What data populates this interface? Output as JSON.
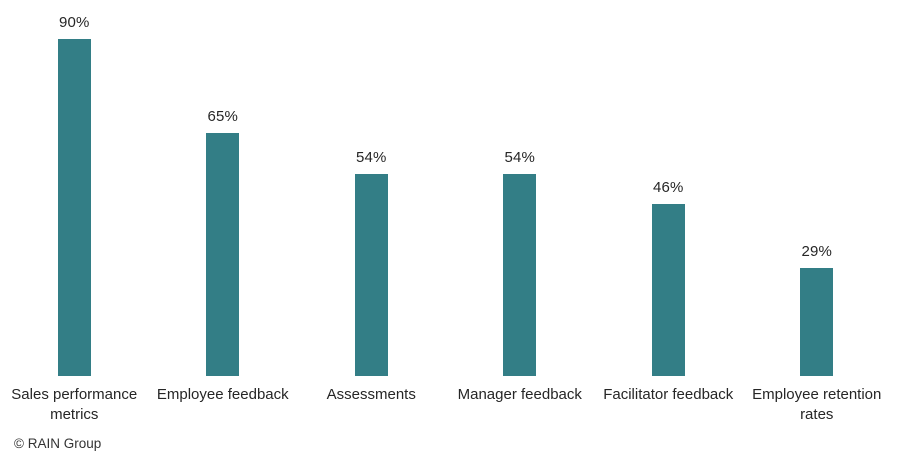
{
  "chart_data": {
    "type": "bar",
    "categories": [
      "Sales performance metrics",
      "Employee feedback",
      "Assessments",
      "Manager feedback",
      "Facilitator feedback",
      "Employee retention rates"
    ],
    "values": [
      90,
      65,
      54,
      54,
      46,
      29
    ],
    "value_labels": [
      "90%",
      "65%",
      "54%",
      "54%",
      "46%",
      "29%"
    ],
    "title": "",
    "xlabel": "",
    "ylabel": "",
    "ylim": [
      0,
      100
    ],
    "grid": false,
    "legend": false,
    "bar_color": "#337E86",
    "label_color": "#262626"
  },
  "attribution": "© RAIN Group"
}
